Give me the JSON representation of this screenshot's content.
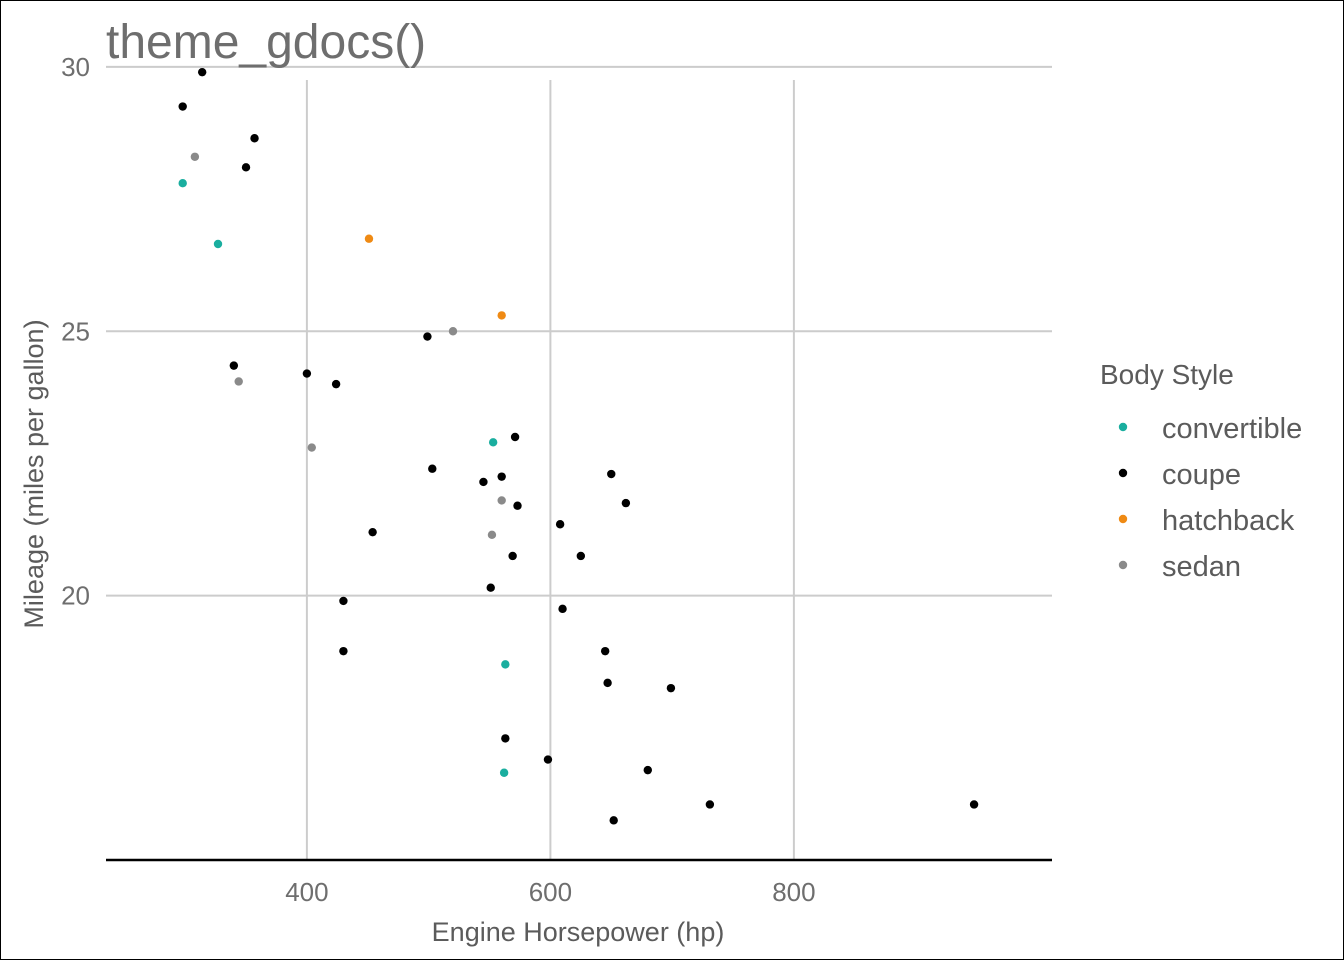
{
  "chart_data": {
    "type": "scatter",
    "title": "theme_gdocs()",
    "xlabel": "Engine Horsepower (hp)",
    "ylabel": "Mileage (miles per gallon)",
    "xlim": [
      235,
      1012
    ],
    "ylim": [
      15,
      31
    ],
    "x_ticks": [
      400,
      600,
      800
    ],
    "y_ticks": [
      20,
      25,
      30
    ],
    "grid": true,
    "legend": {
      "title": "Body Style",
      "placement": "right"
    },
    "series": [
      {
        "name": "convertible",
        "color": "#1aae9f",
        "points": [
          [
            298,
            27.8
          ],
          [
            327,
            26.65
          ],
          [
            553,
            22.9
          ],
          [
            563,
            18.7
          ],
          [
            562,
            16.65
          ]
        ]
      },
      {
        "name": "coupe",
        "color": "#000000",
        "points": [
          [
            314,
            29.9
          ],
          [
            298,
            29.25
          ],
          [
            357,
            28.65
          ],
          [
            350,
            28.1
          ],
          [
            340,
            24.35
          ],
          [
            400,
            24.2
          ],
          [
            424,
            24.0
          ],
          [
            499,
            24.9
          ],
          [
            503,
            22.4
          ],
          [
            454,
            21.2
          ],
          [
            430,
            19.9
          ],
          [
            430,
            18.95
          ],
          [
            545,
            22.15
          ],
          [
            560,
            22.25
          ],
          [
            571,
            23.0
          ],
          [
            573,
            21.7
          ],
          [
            569,
            20.75
          ],
          [
            551,
            20.15
          ],
          [
            608,
            21.35
          ],
          [
            625,
            20.75
          ],
          [
            610,
            19.75
          ],
          [
            650,
            22.3
          ],
          [
            662,
            21.75
          ],
          [
            645,
            18.95
          ],
          [
            647,
            18.35
          ],
          [
            699,
            18.25
          ],
          [
            563,
            17.3
          ],
          [
            598,
            16.9
          ],
          [
            680,
            16.7
          ],
          [
            731,
            16.05
          ],
          [
            652,
            15.75
          ],
          [
            948,
            16.05
          ]
        ]
      },
      {
        "name": "hatchback",
        "color": "#ef8a14",
        "points": [
          [
            451,
            26.75
          ],
          [
            560,
            25.3
          ]
        ]
      },
      {
        "name": "sedan",
        "color": "#8a8a8a",
        "points": [
          [
            308,
            28.3
          ],
          [
            344,
            24.05
          ],
          [
            404,
            22.8
          ],
          [
            520,
            25.0
          ],
          [
            560,
            21.8
          ],
          [
            552,
            21.15
          ]
        ]
      }
    ]
  }
}
